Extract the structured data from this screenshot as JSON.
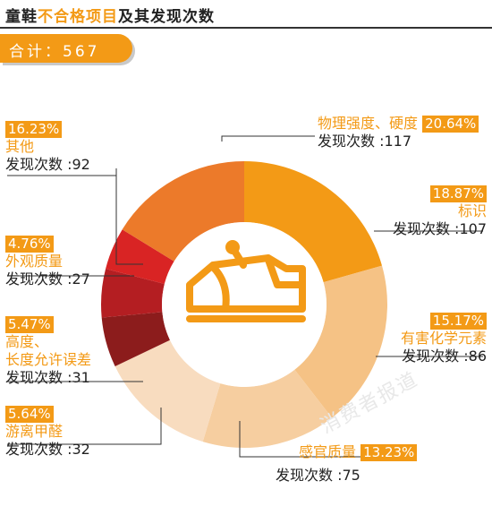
{
  "header": {
    "title_part1": "童鞋",
    "title_part2": "不合格项目",
    "title_part3": "及其发现次数"
  },
  "total": {
    "text": "合计：567"
  },
  "watermark": "消费者报道",
  "colors": {
    "accent": "#f39a16",
    "icon": "#f39a16"
  },
  "chart_data": {
    "type": "pie",
    "donut": true,
    "count_prefix": "发现次数 :",
    "slices": [
      {
        "label": "物理强度、硬度",
        "percent": "20.64%",
        "count": 117,
        "color": "#f39a16"
      },
      {
        "label": "标识",
        "percent": "18.87%",
        "count": 107,
        "color": "#f5c285"
      },
      {
        "label": "有害化学元素",
        "percent": "15.17%",
        "count": 86,
        "color": "#f6ceA0"
      },
      {
        "label": "感官质量",
        "percent": "13.23%",
        "count": 75,
        "color": "#f8dcbf"
      },
      {
        "label": "游离甲醛",
        "percent": "5.64%",
        "count": 32,
        "color": "#8c1c1c"
      },
      {
        "label": "高度、长度允许误差",
        "label_line1": "高度、",
        "label_line2": "长度允许误差",
        "percent": "5.47%",
        "count": 31,
        "color": "#b41e22"
      },
      {
        "label": "外观质量",
        "percent": "4.76%",
        "count": 27,
        "color": "#d92424"
      },
      {
        "label": "其他",
        "percent": "16.23%",
        "count": 92,
        "color": "#ec7a2a"
      }
    ]
  }
}
